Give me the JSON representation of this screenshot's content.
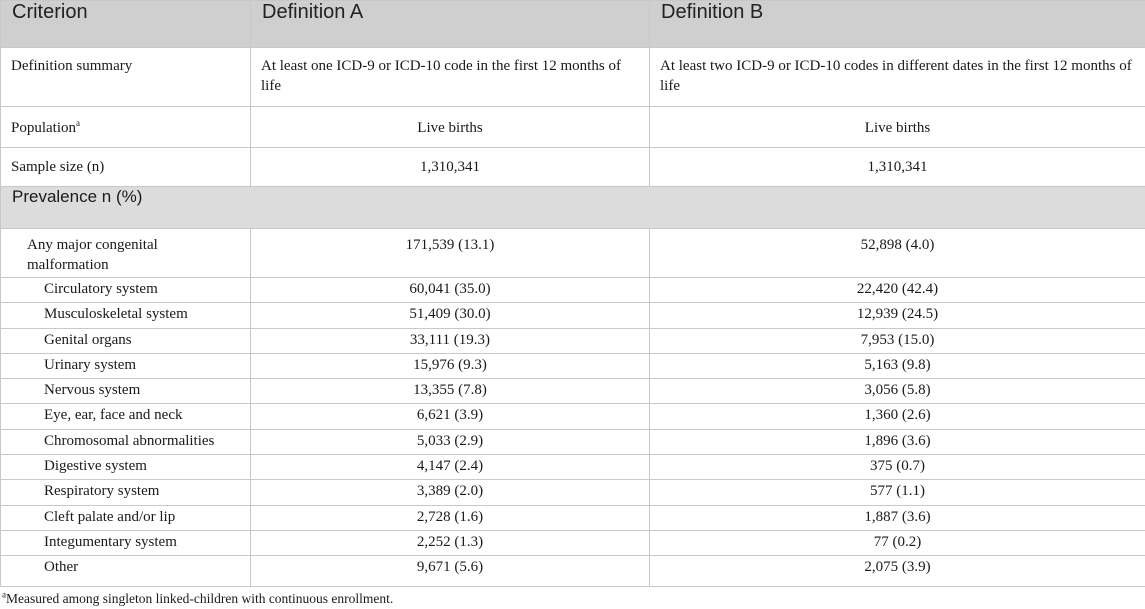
{
  "headers": {
    "criterion": "Criterion",
    "def_a": "Definition A",
    "def_b": "Definition B"
  },
  "rows": {
    "summary": {
      "label": "Definition summary",
      "a": "At least one ICD-9 or ICD-10 code in the first 12 months of life",
      "b": "At least two ICD-9 or ICD-10 codes in different dates in the first 12 months of life"
    },
    "population": {
      "label": "Population",
      "mark": "a",
      "a": "Live births",
      "b": "Live births"
    },
    "sample": {
      "label": "Sample size (n)",
      "a": "1,310,341",
      "b": "1,310,341"
    }
  },
  "section": "Prevalence n (%)",
  "any": {
    "label": "Any major congenital malformation",
    "a": "171,539 (13.1)",
    "b": "52,898 (4.0)"
  },
  "systems": [
    {
      "label": "Circulatory system",
      "a": "60,041 (35.0)",
      "b": "22,420 (42.4)"
    },
    {
      "label": "Musculoskeletal system",
      "a": "51,409 (30.0)",
      "b": "12,939 (24.5)"
    },
    {
      "label": "Genital organs",
      "a": "33,111 (19.3)",
      "b": "7,953 (15.0)"
    },
    {
      "label": "Urinary system",
      "a": "15,976 (9.3)",
      "b": "5,163 (9.8)"
    },
    {
      "label": "Nervous system",
      "a": "13,355 (7.8)",
      "b": "3,056 (5.8)"
    },
    {
      "label": "Eye, ear, face and neck",
      "a": "6,621 (3.9)",
      "b": "1,360 (2.6)"
    },
    {
      "label": "Chromosomal abnormalities",
      "a": "5,033 (2.9)",
      "b": "1,896 (3.6)"
    },
    {
      "label": "Digestive system",
      "a": "4,147 (2.4)",
      "b": "375 (0.7)"
    },
    {
      "label": "Respiratory system",
      "a": "3,389 (2.0)",
      "b": "577 (1.1)"
    },
    {
      "label": "Cleft palate and/or lip",
      "a": "2,728 (1.6)",
      "b": "1,887 (3.6)"
    },
    {
      "label": "Integumentary system",
      "a": "2,252 (1.3)",
      "b": "77 (0.2)"
    },
    {
      "label": "Other",
      "a": "9,671 (5.6)",
      "b": "2,075 (3.9)"
    }
  ],
  "footnote": {
    "mark": "a",
    "text": "Measured among singleton linked-children with continuous enrollment."
  }
}
